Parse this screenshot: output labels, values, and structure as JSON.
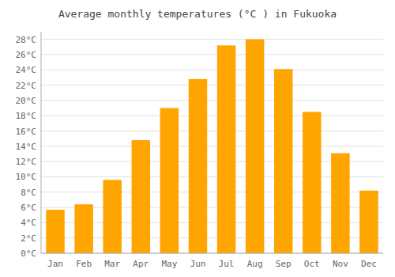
{
  "chart_data": {
    "type": "bar",
    "title": "Average monthly temperatures (°C ) in Fukuoka",
    "categories": [
      "Jan",
      "Feb",
      "Mar",
      "Apr",
      "May",
      "Jun",
      "Jul",
      "Aug",
      "Sep",
      "Oct",
      "Nov",
      "Dec"
    ],
    "values": [
      5.7,
      6.4,
      9.6,
      14.8,
      19.0,
      22.8,
      27.2,
      28.0,
      24.1,
      18.5,
      13.1,
      8.2
    ],
    "color": "#FFA500",
    "ylim": [
      0,
      29
    ],
    "yticks": [
      {
        "value": 0,
        "label": "0°C"
      },
      {
        "value": 2,
        "label": "2°C"
      },
      {
        "value": 4,
        "label": "4°C"
      },
      {
        "value": 6,
        "label": "6°C"
      },
      {
        "value": 8,
        "label": "8°C"
      },
      {
        "value": 10,
        "label": "10°C"
      },
      {
        "value": 12,
        "label": "12°C"
      },
      {
        "value": 14,
        "label": "14°C"
      },
      {
        "value": 16,
        "label": "16°C"
      },
      {
        "value": 18,
        "label": "18°C"
      },
      {
        "value": 20,
        "label": "20°C"
      },
      {
        "value": 22,
        "label": "22°C"
      },
      {
        "value": 24,
        "label": "24°C"
      },
      {
        "value": 26,
        "label": "26°C"
      },
      {
        "value": 28,
        "label": "28°C"
      }
    ],
    "grid": true
  }
}
